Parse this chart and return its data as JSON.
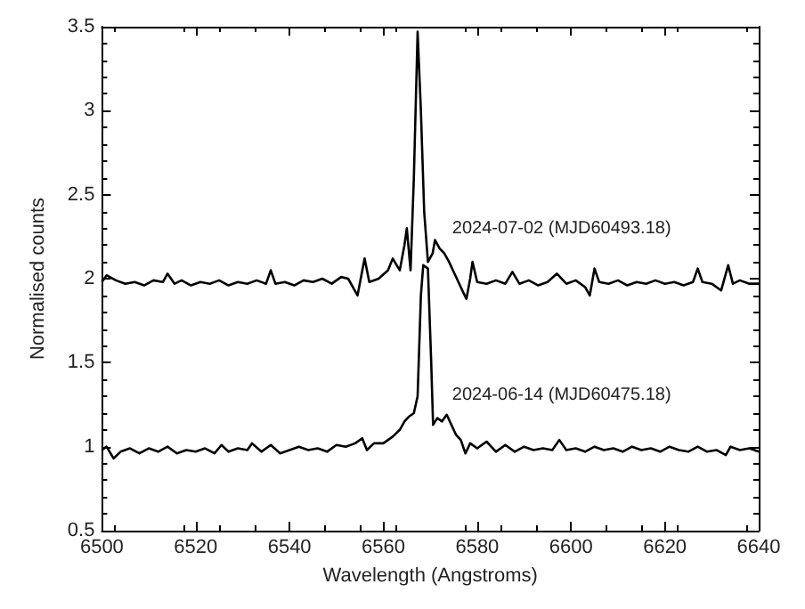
{
  "chart_data": {
    "type": "line",
    "xlabel": "Wavelength (Angstroms)",
    "ylabel": "Normalised counts",
    "xlim": [
      6500,
      6640
    ],
    "xticks": [
      6500,
      6520,
      6540,
      6560,
      6580,
      6600,
      6620,
      6640
    ],
    "ylim": [
      0.5,
      3.5
    ],
    "yticks": [
      0.5,
      1,
      1.5,
      2,
      2.5,
      3,
      3.5
    ],
    "grid": false,
    "marker": "none",
    "line_style": "solid",
    "series": [
      {
        "name": "2024-07-02 (MJD60493.18)",
        "color": "#000000",
        "x": [
          6500,
          6501,
          6503,
          6505,
          6507,
          6509,
          6511,
          6513,
          6514,
          6515.5,
          6517,
          6519,
          6521,
          6523,
          6525,
          6527,
          6529,
          6531,
          6533,
          6535,
          6536,
          6537,
          6539,
          6541,
          6543,
          6545,
          6547,
          6549,
          6551,
          6552.5,
          6554.5,
          6556,
          6557,
          6559,
          6561,
          6562,
          6563.5,
          6564.5,
          6565,
          6565.8,
          6566.5,
          6567.3,
          6568,
          6568.7,
          6569.5,
          6570.5,
          6571,
          6572,
          6573,
          6574,
          6575,
          6576,
          6577,
          6577.7,
          6578.5,
          6579,
          6580,
          6582,
          6584,
          6586,
          6587.5,
          6589,
          6591,
          6593,
          6595,
          6597,
          6599,
          6601,
          6603,
          6604,
          6605,
          6606,
          6608,
          6610,
          6612,
          6614,
          6616,
          6618,
          6620,
          6622,
          6624,
          6626,
          6627,
          6628,
          6630,
          6632,
          6633.5,
          6634.5,
          6636,
          6638,
          6640
        ],
        "values": [
          1.98,
          2.02,
          1.99,
          1.97,
          1.98,
          1.96,
          1.99,
          1.98,
          2.03,
          1.97,
          1.99,
          1.96,
          1.98,
          1.97,
          1.99,
          1.96,
          1.98,
          1.97,
          1.99,
          1.97,
          2.05,
          1.97,
          1.98,
          1.96,
          1.99,
          1.98,
          2.0,
          1.97,
          2.01,
          2.0,
          1.9,
          2.12,
          1.98,
          2.0,
          2.05,
          2.12,
          2.05,
          2.2,
          2.3,
          2.05,
          2.6,
          3.47,
          3.0,
          2.4,
          2.1,
          2.15,
          2.23,
          2.18,
          2.15,
          2.1,
          2.04,
          1.98,
          1.92,
          1.88,
          2.0,
          2.1,
          1.98,
          1.97,
          1.99,
          1.97,
          2.04,
          1.97,
          1.99,
          1.96,
          1.98,
          2.03,
          1.97,
          1.99,
          1.95,
          1.9,
          2.06,
          1.98,
          1.97,
          1.99,
          1.96,
          1.98,
          1.97,
          1.99,
          1.97,
          1.98,
          1.96,
          1.98,
          2.06,
          1.98,
          1.97,
          1.93,
          2.08,
          1.97,
          1.99,
          1.97,
          1.97
        ]
      },
      {
        "name": "2024-06-14 (MJD60475.18)",
        "color": "#000000",
        "x": [
          6500,
          6501,
          6502.5,
          6504,
          6506,
          6508,
          6510,
          6512,
          6514,
          6516,
          6518,
          6520,
          6522,
          6524,
          6525.5,
          6527,
          6529,
          6531,
          6532,
          6534,
          6536,
          6538,
          6540,
          6542,
          6544,
          6546,
          6548,
          6550,
          6552,
          6554,
          6555.5,
          6556.5,
          6558,
          6560,
          6562,
          6563.5,
          6564.5,
          6565.5,
          6566.5,
          6567.3,
          6568,
          6568.5,
          6569.5,
          6570.2,
          6570.6,
          6571.5,
          6572.5,
          6573.5,
          6574.5,
          6575.5,
          6576.5,
          6577.5,
          6578.5,
          6580,
          6582,
          6584,
          6586,
          6588,
          6590,
          6592,
          6594,
          6596,
          6597.5,
          6599,
          6601,
          6603,
          6605,
          6607,
          6609,
          6611,
          6613,
          6615,
          6617,
          6619,
          6621,
          6623,
          6625,
          6627,
          6629,
          6631,
          6633,
          6634,
          6636,
          6638,
          6640
        ],
        "values": [
          0.98,
          1.0,
          0.93,
          0.97,
          0.99,
          0.96,
          0.99,
          0.97,
          1.0,
          0.96,
          0.98,
          0.97,
          0.99,
          0.96,
          1.01,
          0.97,
          0.99,
          0.98,
          1.02,
          0.97,
          1.01,
          0.96,
          0.98,
          1.0,
          0.98,
          0.99,
          0.97,
          1.01,
          1.0,
          1.02,
          1.05,
          0.98,
          1.02,
          1.02,
          1.06,
          1.1,
          1.15,
          1.18,
          1.2,
          1.3,
          1.9,
          2.08,
          2.06,
          1.5,
          1.13,
          1.17,
          1.15,
          1.19,
          1.13,
          1.07,
          1.04,
          0.96,
          1.02,
          0.99,
          1.03,
          0.97,
          1.01,
          0.97,
          1.0,
          0.98,
          0.99,
          0.98,
          1.04,
          0.98,
          0.99,
          0.97,
          1.0,
          0.98,
          0.99,
          0.97,
          1.0,
          0.98,
          0.99,
          0.97,
          1.0,
          0.98,
          0.97,
          1.0,
          0.97,
          0.98,
          0.95,
          1.0,
          0.98,
          0.99,
          0.97
        ]
      }
    ]
  }
}
